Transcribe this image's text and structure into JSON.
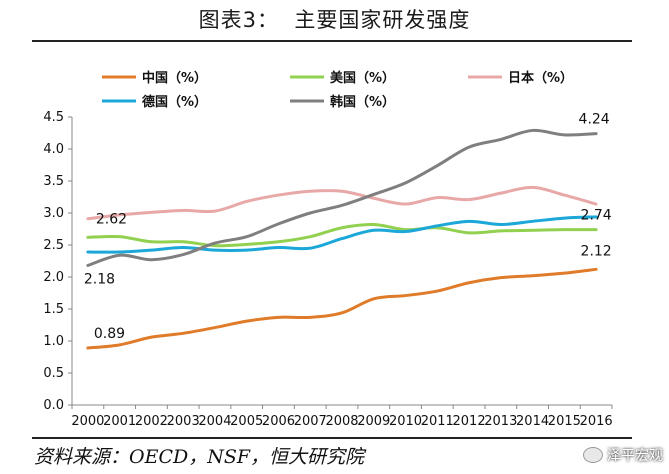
{
  "header": {
    "title": "图表3：  主要国家研发强度"
  },
  "source": "资料来源：OECD，NSF，恒大研究院",
  "watermark": {
    "label": "泽平宏观"
  },
  "chart_data": {
    "type": "line",
    "title": "图表3：  主要国家研发强度",
    "xlabel": "",
    "ylabel": "",
    "ylim": [
      0,
      4.5
    ],
    "grid": false,
    "legend_position": "top",
    "categories": [
      "2000",
      "2001",
      "2002",
      "2003",
      "2004",
      "2005",
      "2006",
      "2007",
      "2008",
      "2009",
      "2010",
      "2011",
      "2012",
      "2013",
      "2014",
      "2015",
      "2016"
    ],
    "y_ticks": [
      "0.0",
      "0.5",
      "1.0",
      "1.5",
      "2.0",
      "2.5",
      "3.0",
      "3.5",
      "4.0",
      "4.5"
    ],
    "series": [
      {
        "name": "中国（%）",
        "color": "#e07b2a",
        "values": [
          0.89,
          0.94,
          1.06,
          1.12,
          1.21,
          1.31,
          1.37,
          1.37,
          1.44,
          1.66,
          1.71,
          1.78,
          1.91,
          1.99,
          2.02,
          2.06,
          2.12
        ]
      },
      {
        "name": "美国（%）",
        "color": "#92d050",
        "values": [
          2.62,
          2.63,
          2.55,
          2.55,
          2.49,
          2.51,
          2.55,
          2.63,
          2.77,
          2.82,
          2.74,
          2.77,
          2.69,
          2.72,
          2.73,
          2.74,
          2.74
        ]
      },
      {
        "name": "日本（%）",
        "color": "#e8a8a8",
        "values": [
          2.91,
          2.97,
          3.01,
          3.04,
          3.03,
          3.18,
          3.28,
          3.34,
          3.34,
          3.23,
          3.14,
          3.24,
          3.21,
          3.31,
          3.4,
          3.28,
          3.14
        ]
      },
      {
        "name": "德国（%）",
        "color": "#1ba7d8",
        "values": [
          2.39,
          2.39,
          2.42,
          2.46,
          2.42,
          2.42,
          2.46,
          2.45,
          2.6,
          2.73,
          2.71,
          2.8,
          2.87,
          2.82,
          2.87,
          2.92,
          2.94
        ]
      },
      {
        "name": "韩国（%）",
        "color": "#7f7f7f",
        "values": [
          2.18,
          2.34,
          2.27,
          2.35,
          2.53,
          2.63,
          2.83,
          3.0,
          3.12,
          3.29,
          3.47,
          3.74,
          4.03,
          4.15,
          4.29,
          4.22,
          4.24
        ]
      }
    ],
    "annotations": [
      {
        "series": 0,
        "index": 0,
        "text": "0.89"
      },
      {
        "series": 0,
        "index": 16,
        "text": "2.12"
      },
      {
        "series": 1,
        "index": 0,
        "text": "2.62"
      },
      {
        "series": 1,
        "index": 16,
        "text": "2.74"
      },
      {
        "series": 4,
        "index": 0,
        "text": "2.18"
      },
      {
        "series": 4,
        "index": 16,
        "text": "4.24"
      }
    ]
  }
}
